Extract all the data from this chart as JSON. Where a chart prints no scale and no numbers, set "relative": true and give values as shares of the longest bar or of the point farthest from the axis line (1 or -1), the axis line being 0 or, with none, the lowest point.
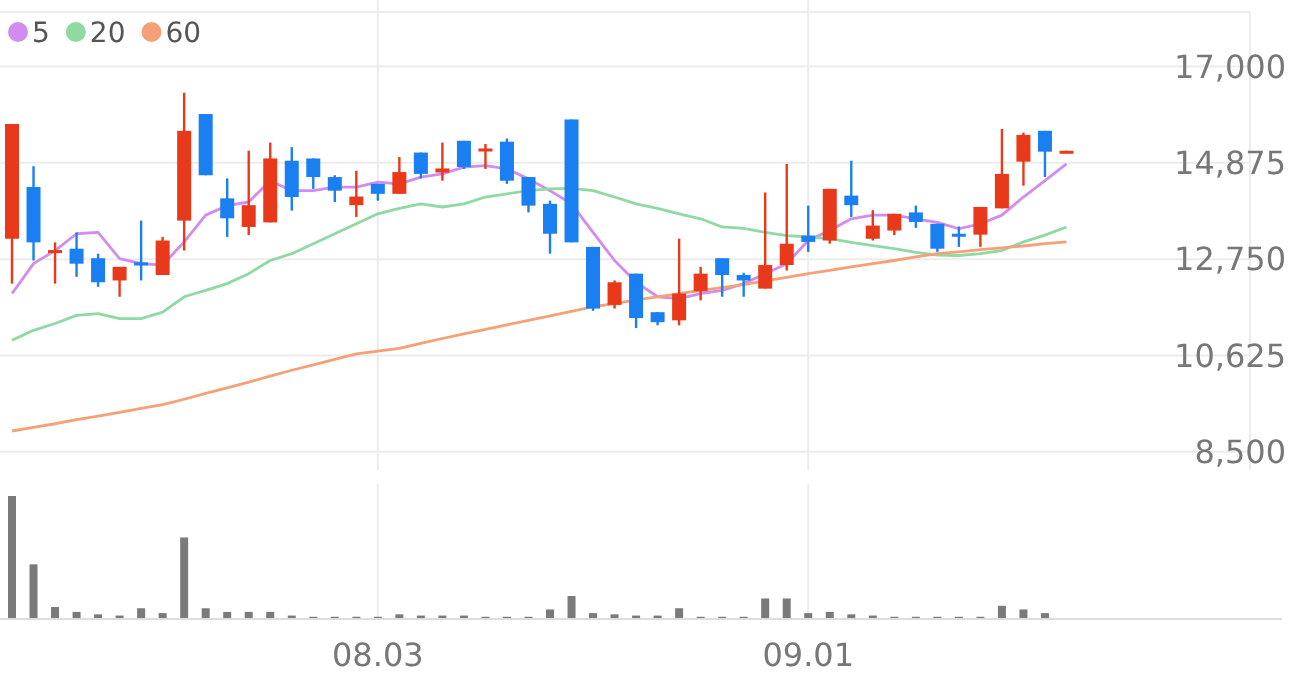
{
  "chart_data": [
    {
      "type": "candlestick",
      "categories": [
        null,
        null,
        null,
        null,
        null,
        null,
        null,
        null,
        null,
        null,
        null,
        null,
        null,
        null,
        null,
        null,
        null,
        "08.03",
        null,
        null,
        null,
        null,
        null,
        null,
        null,
        null,
        null,
        null,
        null,
        null,
        null,
        null,
        null,
        null,
        null,
        null,
        null,
        "09.01",
        null,
        null,
        null,
        null,
        null,
        null,
        null,
        null,
        null,
        null,
        null,
        null
      ],
      "ohlc": [
        [
          13200,
          15730,
          12210,
          15730
        ],
        [
          14340,
          14800,
          12720,
          13120
        ],
        [
          12900,
          13120,
          12210,
          12950
        ],
        [
          12980,
          13340,
          12360,
          12650
        ],
        [
          12770,
          12870,
          12140,
          12240
        ],
        [
          12280,
          12580,
          11920,
          12580
        ],
        [
          12680,
          13600,
          12280,
          12610
        ],
        [
          12400,
          13240,
          12400,
          13160
        ],
        [
          13600,
          16420,
          12940,
          15580
        ],
        [
          15950,
          15950,
          14600,
          14600
        ],
        [
          14090,
          14530,
          13240,
          13650
        ],
        [
          13460,
          15140,
          13280,
          13940
        ],
        [
          13560,
          15320,
          13560,
          14970
        ],
        [
          14920,
          15220,
          13820,
          14120
        ],
        [
          14970,
          14970,
          14300,
          14560
        ],
        [
          14560,
          14600,
          14010,
          14260
        ],
        [
          13940,
          14700,
          13680,
          14130
        ],
        [
          14410,
          14410,
          14040,
          14190
        ],
        [
          14190,
          15000,
          14190,
          14670
        ],
        [
          15100,
          15100,
          14530,
          14630
        ],
        [
          14660,
          15320,
          14480,
          14750
        ],
        [
          15360,
          15360,
          14740,
          14780
        ],
        [
          15150,
          15290,
          14740,
          15190
        ],
        [
          15340,
          15410,
          14410,
          14480
        ],
        [
          14560,
          14560,
          13780,
          13930
        ],
        [
          13970,
          14040,
          12870,
          13310
        ],
        [
          15830,
          15830,
          13120,
          13120
        ],
        [
          13020,
          13020,
          11610,
          11660
        ],
        [
          11740,
          12280,
          11660,
          12240
        ],
        [
          12430,
          12430,
          11230,
          11450
        ],
        [
          11580,
          11580,
          11290,
          11360
        ],
        [
          11400,
          13200,
          11290,
          11990
        ],
        [
          12040,
          12580,
          11840,
          12430
        ],
        [
          12770,
          12770,
          11920,
          12400
        ],
        [
          12400,
          12450,
          11920,
          12280
        ],
        [
          12100,
          14220,
          12100,
          12620
        ],
        [
          12620,
          14850,
          12500,
          13090
        ],
        [
          13270,
          13930,
          12910,
          13130
        ],
        [
          13160,
          14300,
          13090,
          14300
        ],
        [
          14150,
          14920,
          13680,
          13940
        ],
        [
          13200,
          13830,
          13160,
          13490
        ],
        [
          13380,
          13750,
          13280,
          13750
        ],
        [
          13780,
          13930,
          13440,
          13570
        ],
        [
          13530,
          13530,
          12910,
          12980
        ],
        [
          13310,
          13470,
          13020,
          13270
        ],
        [
          13290,
          13900,
          13020,
          13900
        ],
        [
          13870,
          15620,
          13870,
          14630
        ],
        [
          14900,
          15540,
          14370,
          15490
        ],
        [
          15580,
          15580,
          14560,
          15120
        ],
        [
          15120,
          15140,
          15120,
          15140
        ]
      ],
      "colors": [
        "#e8391a",
        "#1a7ff0",
        "#e8391a",
        "#1a7ff0",
        "#1a7ff0",
        "#e8391a",
        "#1a7ff0",
        "#e8391a",
        "#e8391a",
        "#1a7ff0",
        "#1a7ff0",
        "#e8391a",
        "#e8391a",
        "#1a7ff0",
        "#1a7ff0",
        "#1a7ff0",
        "#e8391a",
        "#1a7ff0",
        "#e8391a",
        "#1a7ff0",
        "#e8391a",
        "#1a7ff0",
        "#e8391a",
        "#1a7ff0",
        "#1a7ff0",
        "#1a7ff0",
        "#1a7ff0",
        "#1a7ff0",
        "#e8391a",
        "#1a7ff0",
        "#1a7ff0",
        "#e8391a",
        "#e8391a",
        "#1a7ff0",
        "#1a7ff0",
        "#e8391a",
        "#e8391a",
        "#1a7ff0",
        "#e8391a",
        "#1a7ff0",
        "#e8391a",
        "#e8391a",
        "#1a7ff0",
        "#1a7ff0",
        "#1a7ff0",
        "#e8391a",
        "#e8391a",
        "#e8391a",
        "#1a7ff0",
        "#e8391a"
      ],
      "series": [
        {
          "name": "5",
          "type": "line",
          "color": "#d28cf0",
          "values": [
            11990,
            12650,
            12940,
            13310,
            13340,
            12760,
            12650,
            12620,
            13130,
            13720,
            13930,
            14010,
            14480,
            14260,
            14260,
            14340,
            14340,
            14450,
            14410,
            14560,
            14630,
            14780,
            14810,
            14740,
            14520,
            14260,
            13970,
            13340,
            12720,
            12240,
            11920,
            11880,
            11990,
            12060,
            12210,
            12430,
            12650,
            13160,
            13380,
            13640,
            13720,
            13720,
            13640,
            13560,
            13420,
            13530,
            13720,
            14120,
            14480,
            14850
          ]
        },
        {
          "name": "20",
          "type": "line",
          "color": "#8fd9a2",
          "values": [
            10960,
            11180,
            11330,
            11510,
            11550,
            11440,
            11440,
            11580,
            11920,
            12060,
            12210,
            12430,
            12720,
            12870,
            13090,
            13310,
            13530,
            13750,
            13870,
            13970,
            13900,
            13970,
            14120,
            14190,
            14260,
            14300,
            14310,
            14260,
            14120,
            13970,
            13870,
            13750,
            13640,
            13460,
            13430,
            13340,
            13270,
            13240,
            13200,
            13120,
            13050,
            12980,
            12900,
            12840,
            12830,
            12870,
            12940,
            13130,
            13280,
            13460
          ]
        },
        {
          "name": "60",
          "type": "line",
          "color": "#f5a077",
          "values": [
            8960,
            9040,
            9120,
            9210,
            9290,
            9370,
            9460,
            9540,
            9660,
            9790,
            9910,
            10040,
            10170,
            10300,
            10420,
            10540,
            10660,
            10720,
            10780,
            10890,
            11000,
            11100,
            11200,
            11300,
            11400,
            11500,
            11600,
            11700,
            11770,
            11850,
            11920,
            11990,
            12060,
            12120,
            12190,
            12270,
            12350,
            12430,
            12500,
            12580,
            12650,
            12720,
            12800,
            12870,
            12910,
            12960,
            13000,
            13040,
            13090,
            13130
          ]
        }
      ],
      "ylim": [
        8100,
        18200
      ],
      "yticks": [
        {
          "value": 8500,
          "label": "8,500"
        },
        {
          "value": 10625,
          "label": "10,625"
        },
        {
          "value": 12750,
          "label": "12,750"
        },
        {
          "value": 14875,
          "label": "14,875"
        },
        {
          "value": 17000,
          "label": "17,000"
        }
      ],
      "grid": true,
      "legend": "top left",
      "tick_labels": "y"
    },
    {
      "type": "bar",
      "categories": [
        null,
        null,
        null,
        null,
        null,
        null,
        null,
        null,
        null,
        null,
        null,
        null,
        null,
        null,
        null,
        null,
        null,
        "08.03",
        null,
        null,
        null,
        null,
        null,
        null,
        null,
        null,
        null,
        null,
        null,
        null,
        null,
        null,
        null,
        null,
        null,
        null,
        null,
        "09.01",
        null,
        null,
        null,
        null,
        null,
        null,
        null,
        null,
        null,
        null,
        null,
        null
      ],
      "values": [
        1,
        0.44,
        0.09,
        0.05,
        0.03,
        0.02,
        0.08,
        0.04,
        0.66,
        0.08,
        0.05,
        0.05,
        0.05,
        0.02,
        0.01,
        0.01,
        0.01,
        0.01,
        0.03,
        0.02,
        0.02,
        0.02,
        0.01,
        0.01,
        0.01,
        0.07,
        0.18,
        0.04,
        0.03,
        0.02,
        0.02,
        0.08,
        0.01,
        0.01,
        0.01,
        0.16,
        0.16,
        0.04,
        0.05,
        0.03,
        0.02,
        0.01,
        0.01,
        0.01,
        0.01,
        0.01,
        0.1,
        0.07,
        0.04,
        0
      ],
      "color": "#7a7a7a",
      "relative": true,
      "grid": "x",
      "tick_labels": "x"
    }
  ]
}
